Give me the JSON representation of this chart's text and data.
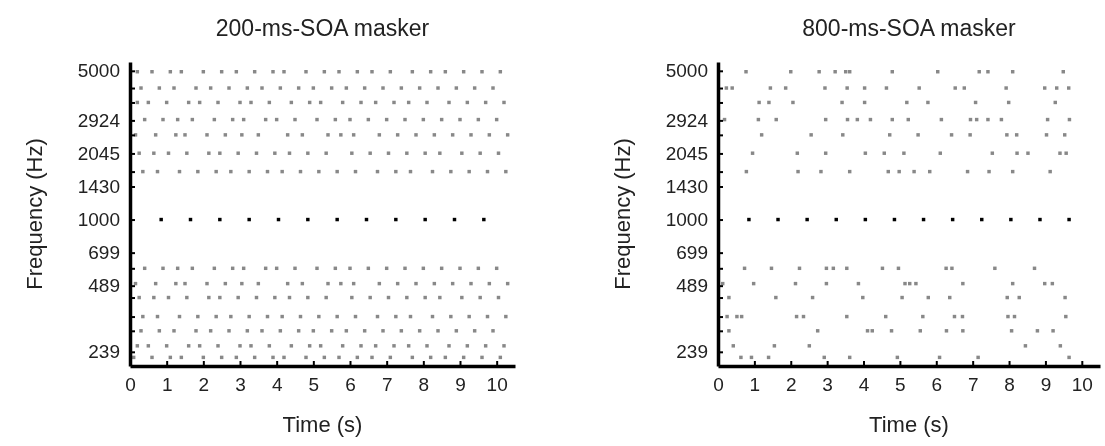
{
  "chart_data": [
    {
      "type": "scatter",
      "title": "200-ms-SOA masker",
      "xlabel": "Time (s)",
      "ylabel": "Frequency (Hz)",
      "xlim": [
        0,
        10.5
      ],
      "ylim": [
        205,
        5500
      ],
      "log": "y",
      "marker": "square",
      "xticks": [
        0,
        1,
        2,
        3,
        4,
        5,
        6,
        7,
        8,
        9,
        10
      ],
      "yticks": [
        239,
        489,
        699,
        1000,
        1430,
        2045,
        2924,
        5000,
        {
          "value": 4150,
          "label": null
        },
        {
          "value": 3550,
          "label": null
        },
        {
          "value": 2500,
          "label": null
        },
        {
          "value": 1680,
          "label": null
        },
        {
          "value": 590,
          "label": null
        },
        {
          "value": 430,
          "label": null
        },
        {
          "value": 350,
          "label": null
        },
        {
          "value": 300,
          "label": null
        }
      ],
      "series": [
        {
          "color": "#000000",
          "x": [
            0.85,
            1.65,
            2.45,
            3.25,
            4.05,
            4.85,
            5.65,
            6.45,
            7.25,
            8.05,
            8.85,
            9.65
          ],
          "values": [
            1000,
            1000,
            1000,
            1000,
            1000,
            1000,
            1000,
            1000,
            1000,
            1000,
            1000,
            1000
          ]
        },
        {
          "color": "#888888",
          "x": [
            0.2,
            0.6,
            1.1,
            1.4,
            2.0,
            2.5,
            2.9,
            3.4,
            3.9,
            4.2,
            4.8,
            5.3,
            5.7,
            6.2,
            6.6,
            7.1,
            7.7,
            8.2,
            8.6,
            9.1,
            9.6,
            10.1
          ],
          "values": [
            4950,
            4950,
            4950,
            4950,
            4950,
            4950,
            4950,
            4950,
            4950,
            4950,
            4950,
            4950,
            4950,
            4950,
            4950,
            4950,
            4950,
            4950,
            4950,
            4950,
            4950,
            4950
          ]
        },
        {
          "color": "#888888",
          "x": [
            0.3,
            0.8,
            1.2,
            1.8,
            2.2,
            2.7,
            3.2,
            3.6,
            4.1,
            4.6,
            5.0,
            5.5,
            5.9,
            6.4,
            6.9,
            7.4,
            7.9,
            8.4,
            8.9,
            9.4,
            9.9
          ],
          "values": [
            4150,
            4150,
            4150,
            4150,
            4150,
            4150,
            4150,
            4150,
            4150,
            4150,
            4150,
            4150,
            4150,
            4150,
            4150,
            4150,
            4150,
            4150,
            4150,
            4150,
            4150
          ]
        },
        {
          "color": "#888888",
          "x": [
            0.2,
            0.5,
            1.0,
            1.6,
            1.9,
            2.4,
            3.0,
            3.3,
            3.8,
            4.4,
            4.9,
            5.2,
            5.8,
            6.3,
            6.7,
            7.2,
            7.6,
            8.1,
            8.7,
            9.2,
            9.7,
            10.2
          ],
          "values": [
            3550,
            3550,
            3550,
            3550,
            3550,
            3550,
            3550,
            3550,
            3550,
            3550,
            3550,
            3550,
            3550,
            3550,
            3550,
            3550,
            3550,
            3550,
            3550,
            3550,
            3550,
            3550
          ]
        },
        {
          "color": "#888888",
          "x": [
            0.4,
            0.9,
            1.3,
            1.7,
            2.3,
            2.8,
            3.1,
            3.7,
            4.0,
            4.5,
            5.1,
            5.6,
            6.0,
            6.5,
            7.0,
            7.5,
            8.0,
            8.5,
            9.0,
            9.5,
            10.0
          ],
          "values": [
            2950,
            2950,
            2950,
            2950,
            2950,
            2950,
            2950,
            2950,
            2950,
            2950,
            2950,
            2950,
            2950,
            2950,
            2950,
            2950,
            2950,
            2950,
            2950,
            2950,
            2950
          ]
        },
        {
          "color": "#888888",
          "x": [
            0.15,
            0.7,
            1.25,
            1.5,
            2.1,
            2.6,
            3.05,
            3.5,
            4.3,
            4.7,
            5.4,
            5.75,
            6.1,
            6.8,
            7.3,
            7.8,
            8.3,
            8.8,
            9.3,
            9.8,
            10.3
          ],
          "values": [
            2500,
            2500,
            2500,
            2500,
            2500,
            2500,
            2500,
            2500,
            2500,
            2500,
            2500,
            2500,
            2500,
            2500,
            2500,
            2500,
            2500,
            2500,
            2500,
            2500,
            2500
          ]
        },
        {
          "color": "#888888",
          "x": [
            0.25,
            0.65,
            1.05,
            1.55,
            2.15,
            2.45,
            2.95,
            3.45,
            3.95,
            4.35,
            4.85,
            5.35,
            6.05,
            6.55,
            7.05,
            7.55,
            8.05,
            8.45,
            9.05,
            9.55,
            10.05
          ],
          "values": [
            2050,
            2050,
            2050,
            2050,
            2050,
            2050,
            2050,
            2050,
            2050,
            2050,
            2050,
            2050,
            2050,
            2050,
            2050,
            2050,
            2050,
            2050,
            2050,
            2050,
            2050
          ]
        },
        {
          "color": "#888888",
          "x": [
            0.35,
            0.75,
            1.35,
            1.85,
            2.35,
            2.75,
            3.25,
            3.75,
            4.15,
            4.65,
            5.15,
            5.65,
            6.15,
            6.75,
            7.25,
            7.65,
            8.25,
            8.75,
            9.25,
            9.75,
            10.25
          ],
          "values": [
            1680,
            1680,
            1680,
            1680,
            1680,
            1680,
            1680,
            1680,
            1680,
            1680,
            1680,
            1680,
            1680,
            1680,
            1680,
            1680,
            1680,
            1680,
            1680,
            1680,
            1680
          ]
        },
        {
          "color": "#888888",
          "x": [
            0.4,
            0.9,
            1.3,
            1.7,
            2.3,
            2.8,
            3.1,
            3.7,
            4.0,
            4.5,
            5.1,
            5.6,
            6.0,
            6.5,
            7.0,
            7.5,
            8.0,
            8.5,
            9.0,
            9.5,
            10.0
          ],
          "values": [
            590,
            590,
            590,
            590,
            590,
            590,
            590,
            590,
            590,
            590,
            590,
            590,
            590,
            590,
            590,
            590,
            590,
            590,
            590,
            590,
            590
          ]
        },
        {
          "color": "#888888",
          "x": [
            0.15,
            0.7,
            1.25,
            1.5,
            2.1,
            2.6,
            3.05,
            3.5,
            4.3,
            4.7,
            5.4,
            5.75,
            6.1,
            6.8,
            7.3,
            7.8,
            8.3,
            8.8,
            9.3,
            9.8,
            10.3
          ],
          "values": [
            500,
            500,
            500,
            500,
            500,
            500,
            500,
            500,
            500,
            500,
            500,
            500,
            500,
            500,
            500,
            500,
            500,
            500,
            500,
            500,
            500
          ]
        },
        {
          "color": "#888888",
          "x": [
            0.25,
            0.65,
            1.05,
            1.55,
            2.15,
            2.45,
            2.95,
            3.45,
            3.95,
            4.35,
            4.85,
            5.35,
            6.05,
            6.55,
            7.05,
            7.55,
            8.05,
            8.45,
            9.05,
            9.55,
            10.05
          ],
          "values": [
            430,
            430,
            430,
            430,
            430,
            430,
            430,
            430,
            430,
            430,
            430,
            430,
            430,
            430,
            430,
            430,
            430,
            430,
            430,
            430,
            430
          ]
        },
        {
          "color": "#888888",
          "x": [
            0.35,
            0.75,
            1.35,
            1.85,
            2.35,
            2.75,
            3.25,
            3.75,
            4.15,
            4.65,
            5.15,
            5.65,
            6.15,
            6.75,
            7.25,
            7.65,
            8.25,
            8.75,
            9.25,
            9.75,
            10.25
          ],
          "values": [
            350,
            350,
            350,
            350,
            350,
            350,
            350,
            350,
            350,
            350,
            350,
            350,
            350,
            350,
            350,
            350,
            350,
            350,
            350,
            350,
            350
          ]
        },
        {
          "color": "#888888",
          "x": [
            0.3,
            0.8,
            1.2,
            1.8,
            2.2,
            2.7,
            3.2,
            3.6,
            4.1,
            4.6,
            5.0,
            5.5,
            5.9,
            6.4,
            6.9,
            7.4,
            7.9,
            8.4,
            8.9,
            9.4,
            9.9
          ],
          "values": [
            300,
            300,
            300,
            300,
            300,
            300,
            300,
            300,
            300,
            300,
            300,
            300,
            300,
            300,
            300,
            300,
            300,
            300,
            300,
            300,
            300
          ]
        },
        {
          "color": "#888888",
          "x": [
            0.2,
            0.5,
            1.0,
            1.6,
            1.9,
            2.4,
            3.0,
            3.3,
            3.8,
            4.4,
            4.9,
            5.2,
            5.8,
            6.3,
            6.7,
            7.2,
            7.6,
            8.1,
            8.7,
            9.2,
            9.7,
            10.2
          ],
          "values": [
            255,
            255,
            255,
            255,
            255,
            255,
            255,
            255,
            255,
            255,
            255,
            255,
            255,
            255,
            255,
            255,
            255,
            255,
            255,
            255,
            255,
            255
          ]
        },
        {
          "color": "#888888",
          "x": [
            0.1,
            0.6,
            1.1,
            1.4,
            2.0,
            2.5,
            2.9,
            3.4,
            3.9,
            4.2,
            4.8,
            5.3,
            5.7,
            6.2,
            6.6,
            7.1,
            7.7,
            8.2,
            8.6,
            9.1,
            9.6,
            10.1
          ],
          "values": [
            225,
            225,
            225,
            225,
            225,
            225,
            225,
            225,
            225,
            225,
            225,
            225,
            225,
            225,
            225,
            225,
            225,
            225,
            225,
            225,
            225,
            225
          ]
        }
      ]
    },
    {
      "type": "scatter",
      "title": "800-ms-SOA masker",
      "xlabel": "Time (s)",
      "ylabel": "Frequency (Hz)",
      "xlim": [
        0,
        10.5
      ],
      "ylim": [
        205,
        5500
      ],
      "log": "y",
      "marker": "square",
      "xticks": [
        0,
        1,
        2,
        3,
        4,
        5,
        6,
        7,
        8,
        9,
        10
      ],
      "yticks": [
        239,
        489,
        699,
        1000,
        1430,
        2045,
        2924,
        5000,
        {
          "value": 4150,
          "label": null
        },
        {
          "value": 3550,
          "label": null
        },
        {
          "value": 2500,
          "label": null
        },
        {
          "value": 1680,
          "label": null
        },
        {
          "value": 590,
          "label": null
        },
        {
          "value": 430,
          "label": null
        },
        {
          "value": 350,
          "label": null
        },
        {
          "value": 300,
          "label": null
        }
      ],
      "series": [
        {
          "color": "#000000",
          "x": [
            0.85,
            1.65,
            2.45,
            3.25,
            4.05,
            4.85,
            5.65,
            6.45,
            7.25,
            8.05,
            8.85,
            9.65
          ],
          "values": [
            1000,
            1000,
            1000,
            1000,
            1000,
            1000,
            1000,
            1000,
            1000,
            1000,
            1000,
            1000
          ]
        },
        {
          "color": "#888888",
          "x": [
            0.77,
            2.0,
            2.78,
            3.22,
            3.51,
            3.62,
            4.79,
            6.04,
            7.18,
            7.42,
            8.1,
            9.49
          ],
          "values": [
            4950,
            4950,
            4950,
            4950,
            4950,
            4950,
            4950,
            4950,
            4950,
            4950,
            4950,
            4950
          ]
        },
        {
          "color": "#888888",
          "x": [
            0.23,
            0.39,
            1.44,
            1.86,
            2.94,
            3.55,
            4.03,
            4.63,
            5.53,
            6.52,
            6.77,
            7.92,
            8.98,
            9.31,
            9.64
          ],
          "values": [
            4150,
            4150,
            4150,
            4150,
            4150,
            4150,
            4150,
            4150,
            4150,
            4150,
            4150,
            4150,
            4150,
            4150,
            4150
          ]
        },
        {
          "color": "#888888",
          "x": [
            1.13,
            1.4,
            2.06,
            3.41,
            4.03,
            5.19,
            5.77,
            7.08,
            7.99,
            9.27
          ],
          "values": [
            3550,
            3550,
            3550,
            3550,
            3550,
            3550,
            3550,
            3550,
            3550,
            3550
          ]
        },
        {
          "color": "#888888",
          "x": [
            0.18,
            1.11,
            1.6,
            2.96,
            3.56,
            3.83,
            4.19,
            4.79,
            5.23,
            6.14,
            6.94,
            7.11,
            7.42,
            7.79,
            9.06,
            9.66
          ],
          "values": [
            2950,
            2950,
            2950,
            2950,
            2950,
            2950,
            2950,
            2950,
            2950,
            2950,
            2950,
            2950,
            2950,
            2950,
            2950,
            2950
          ]
        },
        {
          "color": "#888888",
          "x": [
            1.2,
            2.56,
            3.43,
            4.72,
            5.5,
            6.42,
            6.93,
            7.94,
            8.21,
            9.03,
            9.53
          ],
          "values": [
            2500,
            2500,
            2500,
            2500,
            2500,
            2500,
            2500,
            2500,
            2500,
            2500,
            2500
          ]
        },
        {
          "color": "#888888",
          "x": [
            0.95,
            2.18,
            2.96,
            4.05,
            4.57,
            5.11,
            6.11,
            7.54,
            8.22,
            8.52,
            9.4,
            9.57
          ],
          "values": [
            2050,
            2050,
            2050,
            2050,
            2050,
            2050,
            2050,
            2050,
            2050,
            2050,
            2050,
            2050
          ]
        },
        {
          "color": "#888888",
          "x": [
            0.78,
            2.2,
            2.83,
            3.62,
            4.68,
            4.98,
            5.39,
            5.82,
            6.86,
            7.45,
            8.1,
            9.13
          ],
          "values": [
            1680,
            1680,
            1680,
            1680,
            1680,
            1680,
            1680,
            1680,
            1680,
            1680,
            1680,
            1680
          ]
        },
        {
          "color": "#888888",
          "x": [
            0.73,
            1.47,
            2.24,
            2.98,
            3.17,
            3.54,
            4.52,
            4.96,
            6.27,
            6.43,
            7.61,
            8.7
          ],
          "values": [
            590,
            590,
            590,
            590,
            590,
            590,
            590,
            590,
            590,
            590,
            590,
            590
          ]
        },
        {
          "color": "#888888",
          "x": [
            0.13,
            0.98,
            2.13,
            2.98,
            3.86,
            5.14,
            5.27,
            5.44,
            6.73,
            8.1,
            8.98,
            9.19
          ],
          "values": [
            500,
            500,
            500,
            500,
            500,
            500,
            500,
            500,
            500,
            500,
            500,
            500
          ]
        },
        {
          "color": "#888888",
          "x": [
            0.3,
            1.59,
            2.6,
            3.98,
            5.06,
            5.78,
            6.37,
            7.95,
            8.28,
            9.54
          ],
          "values": [
            430,
            430,
            430,
            430,
            430,
            430,
            430,
            430,
            430,
            430
          ]
        },
        {
          "color": "#888888",
          "x": [
            0.25,
            0.52,
            0.65,
            2.16,
            2.35,
            3.54,
            4.61,
            5.63,
            6.5,
            6.72,
            7.97,
            8.15,
            9.56
          ],
          "values": [
            350,
            350,
            350,
            350,
            350,
            350,
            350,
            350,
            350,
            350,
            350,
            350,
            350
          ]
        },
        {
          "color": "#888888",
          "x": [
            0.3,
            2.74,
            4.11,
            4.24,
            4.77,
            5.56,
            6.28,
            6.73,
            8.07,
            8.78,
            9.21
          ],
          "values": [
            300,
            300,
            300,
            300,
            300,
            300,
            300,
            300,
            300,
            300,
            300
          ]
        },
        {
          "color": "#888888",
          "x": [
            0.42,
            1.55,
            2.51,
            8.45,
            9.41
          ],
          "values": [
            255,
            255,
            255,
            255,
            255
          ]
        },
        {
          "color": "#888888",
          "x": [
            0.63,
            0.92,
            1.39,
            2.92,
            3.62,
            4.93,
            6.09,
            7.15,
            9.65
          ],
          "values": [
            225,
            225,
            225,
            225,
            225,
            225,
            225,
            225,
            225
          ]
        }
      ]
    }
  ]
}
